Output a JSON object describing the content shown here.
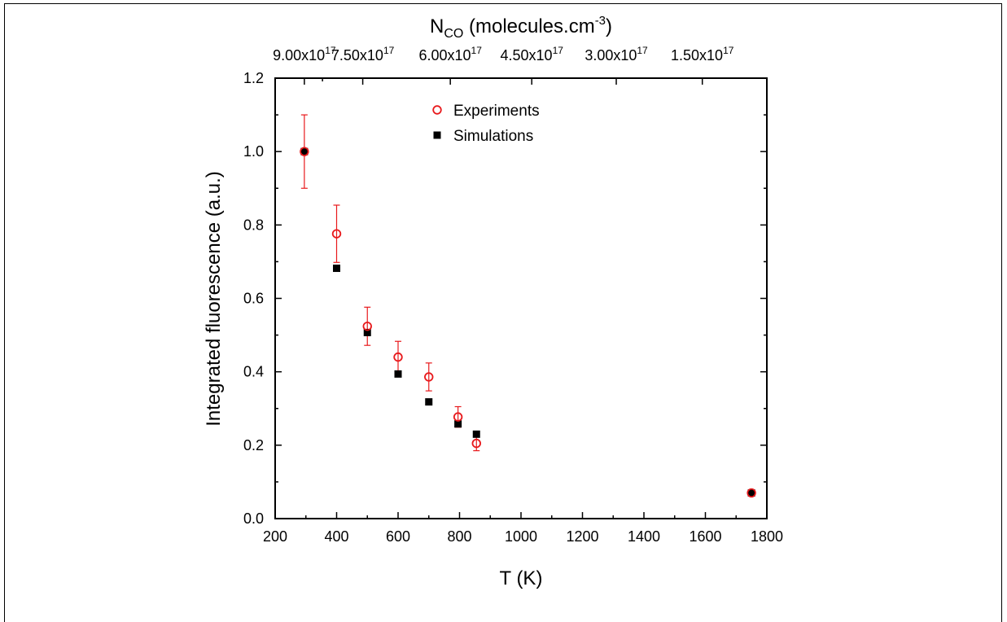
{
  "chart_data": {
    "type": "scatter",
    "xlabel": "T (K)",
    "ylabel": "Integrated fluorescence (a.u.)",
    "top_axis_label": {
      "main": "N",
      "sub": "CO",
      "rest": " (molecules.cm",
      "sup": "-3",
      "close": ")"
    },
    "xlim": [
      200,
      1800
    ],
    "ylim": [
      0.0,
      1.2
    ],
    "x_ticks": [
      200,
      400,
      600,
      800,
      1000,
      1200,
      1400,
      1600,
      1800
    ],
    "y_ticks": [
      "0.0",
      "0.2",
      "0.4",
      "0.6",
      "0.8",
      "1.0",
      "1.2"
    ],
    "top_ticks": [
      {
        "T": 295,
        "mant": "9.00x10",
        "exp": "17"
      },
      {
        "T": 354,
        "mant": "",
        "exp": ""
      },
      {
        "T": 485,
        "mant": "7.50x10",
        "exp": "17"
      },
      {
        "T": 770,
        "mant": "6.00x10",
        "exp": "17"
      },
      {
        "T": 1035,
        "mant": "4.50x10",
        "exp": "17"
      },
      {
        "T": 1310,
        "mant": "3.00x10",
        "exp": "17"
      },
      {
        "T": 1590,
        "mant": "1.50x10",
        "exp": "17"
      }
    ],
    "legend_position": "top-center",
    "series": [
      {
        "name": "Experiments",
        "marker": "open-circle",
        "color": "#e8191c",
        "x": [
          295,
          400,
          500,
          600,
          700,
          795,
          855,
          1750
        ],
        "y": [
          1.0,
          0.776,
          0.524,
          0.44,
          0.386,
          0.277,
          0.205,
          0.07
        ],
        "err": [
          0.1,
          0.078,
          0.052,
          0.043,
          0.038,
          0.028,
          0.02,
          0.005
        ]
      },
      {
        "name": "Simulations",
        "marker": "filled-square",
        "color": "#000000",
        "x": [
          295,
          400,
          500,
          600,
          700,
          795,
          855,
          1750
        ],
        "y": [
          1.0,
          0.682,
          0.507,
          0.394,
          0.318,
          0.258,
          0.23,
          0.07
        ]
      }
    ]
  }
}
